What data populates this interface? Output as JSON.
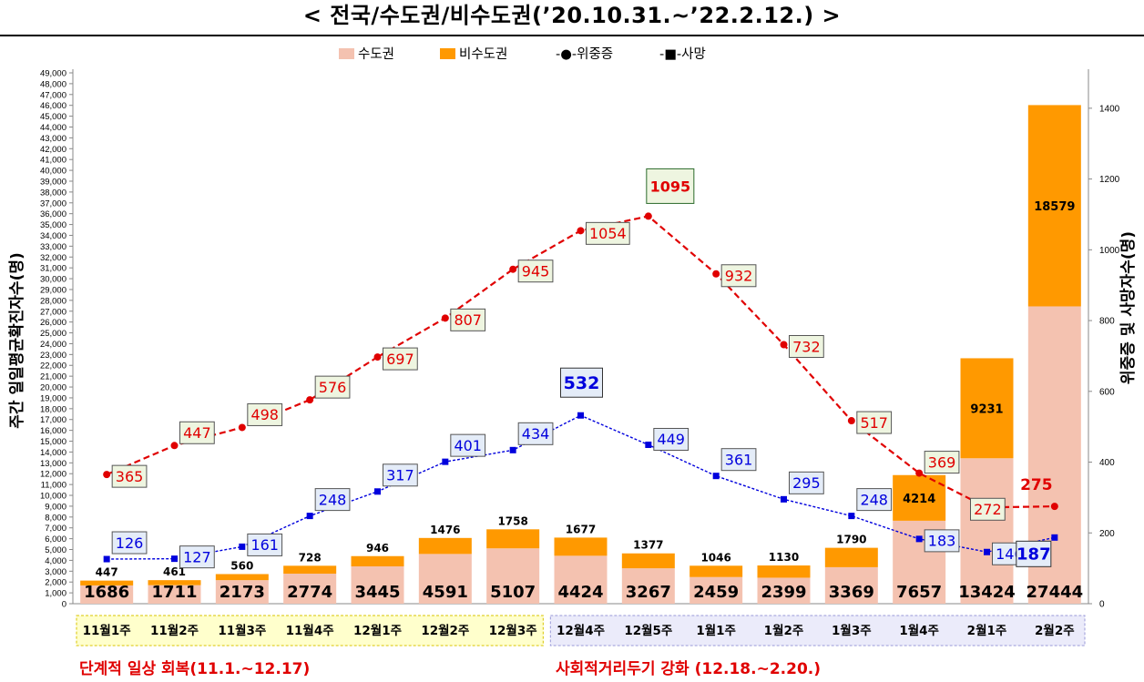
{
  "title": "< 전국/수도권/비수도권(’20.10.31.~’22.2.12.) >",
  "chart_data": {
    "type": "bar",
    "stacked": true,
    "categories": [
      "11월1주",
      "11월2주",
      "11월3주",
      "11월4주",
      "12월1주",
      "12월2주",
      "12월3주",
      "12월4주",
      "12월5주",
      "1월1주",
      "1월2주",
      "1월3주",
      "1월4주",
      "2월1주",
      "2월2주"
    ],
    "series": [
      {
        "name": "수도권",
        "type": "bar",
        "axis": "left",
        "color": "#f4c2b0",
        "values": [
          1686,
          1711,
          2173,
          2774,
          3445,
          4591,
          5107,
          4424,
          3267,
          2459,
          2399,
          3369,
          7657,
          13424,
          27444
        ]
      },
      {
        "name": "비수도권",
        "type": "bar",
        "axis": "left",
        "color": "#ff9900",
        "values": [
          447,
          461,
          560,
          728,
          946,
          1476,
          1758,
          1677,
          1377,
          1046,
          1130,
          1790,
          4214,
          9231,
          18579
        ]
      },
      {
        "name": "위중증",
        "type": "line",
        "axis": "right",
        "color": "#e00000",
        "values": [
          365,
          447,
          498,
          576,
          697,
          807,
          945,
          1054,
          1095,
          932,
          732,
          517,
          369,
          272,
          275
        ]
      },
      {
        "name": "사망",
        "type": "line",
        "axis": "right",
        "color": "#0000dd",
        "values": [
          126,
          127,
          161,
          248,
          317,
          401,
          434,
          532,
          449,
          361,
          295,
          248,
          183,
          146,
          187
        ]
      }
    ],
    "ylabel": "주간 일일평균확진자수(명)",
    "y2label": "위중증 및 사망자수(명)",
    "ylim": [
      0,
      49000
    ],
    "ytick_step": 1000,
    "y2lim": [
      0,
      1500
    ],
    "y2ticks": [
      0,
      200,
      400,
      600,
      800,
      1000,
      1200,
      1400
    ],
    "legend": [
      "수도권",
      "비수도권",
      "-●-위중증",
      "-■-사망"
    ],
    "legend_position": "top-center",
    "periods": [
      {
        "label": "단계적 일상 회복(11.1.~12.17)",
        "range": [
          "11월1주",
          "12월3주"
        ],
        "color": "#ffffcc"
      },
      {
        "label": "사회적거리두기 강화 (12.18.~2.20.)",
        "range": [
          "12월4주",
          "2월2주"
        ],
        "color": "#ebebfa"
      }
    ]
  }
}
